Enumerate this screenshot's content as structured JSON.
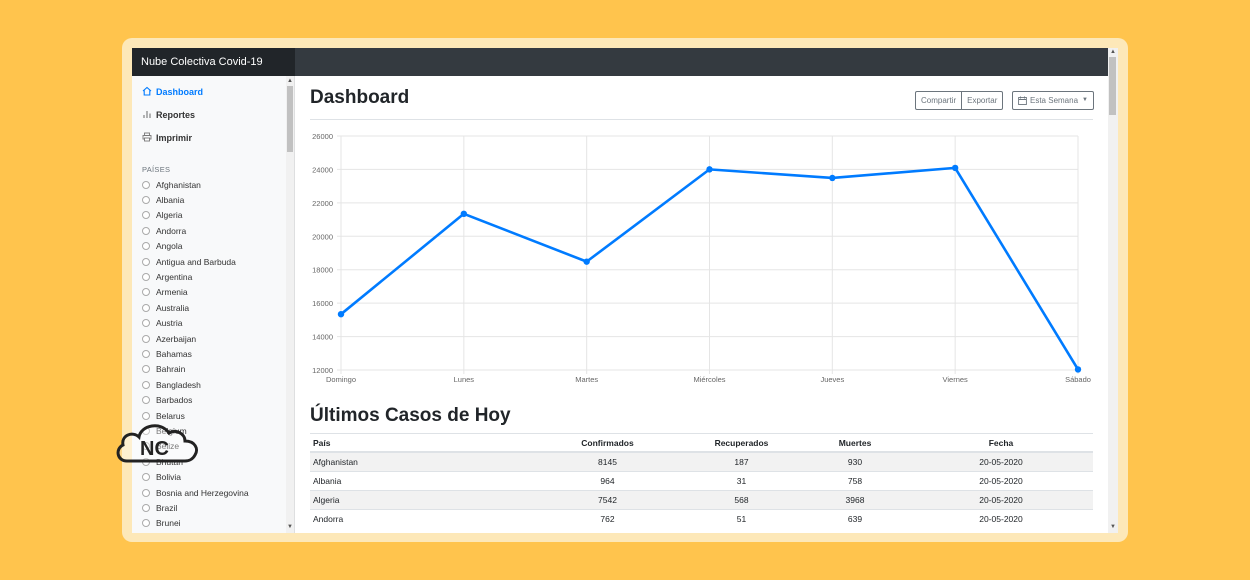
{
  "app": {
    "title": "Nube Colectiva Covid-19"
  },
  "sidebar": {
    "nav": [
      {
        "label": "Dashboard",
        "icon": "home-icon",
        "active": true
      },
      {
        "label": "Reportes",
        "icon": "bar-chart-icon",
        "active": false
      },
      {
        "label": "Imprimir",
        "icon": "printer-icon",
        "active": false
      }
    ],
    "countries_heading": "PAÍSES",
    "countries": [
      "Afghanistan",
      "Albania",
      "Algeria",
      "Andorra",
      "Angola",
      "Antigua and Barbuda",
      "Argentina",
      "Armenia",
      "Australia",
      "Austria",
      "Azerbaijan",
      "Bahamas",
      "Bahrain",
      "Bangladesh",
      "Barbados",
      "Belarus",
      "Belgium",
      "Belize",
      "Bhutan",
      "Bolivia",
      "Bosnia and Herzegovina",
      "Brazil",
      "Brunei"
    ]
  },
  "main": {
    "title": "Dashboard",
    "share_label": "Compartir",
    "export_label": "Exportar",
    "week_label": "Esta Semana",
    "table_title": "Últimos Casos de Hoy"
  },
  "chart_data": {
    "type": "line",
    "categories": [
      "Domingo",
      "Lunes",
      "Martes",
      "Miércoles",
      "Jueves",
      "Viernes",
      "Sábado"
    ],
    "values": [
      15339,
      21345,
      18483,
      24003,
      23489,
      24092,
      12034
    ],
    "ylim": [
      12000,
      26000
    ],
    "yticks": [
      12000,
      14000,
      16000,
      18000,
      20000,
      22000,
      24000,
      26000
    ],
    "grid": true,
    "color": "#007bff"
  },
  "table": {
    "headers": [
      "País",
      "Confirmados",
      "Recuperados",
      "Muertes",
      "Fecha"
    ],
    "rows": [
      [
        "Afghanistan",
        "8145",
        "187",
        "930",
        "20-05-2020"
      ],
      [
        "Albania",
        "964",
        "31",
        "758",
        "20-05-2020"
      ],
      [
        "Algeria",
        "7542",
        "568",
        "3968",
        "20-05-2020"
      ],
      [
        "Andorra",
        "762",
        "51",
        "639",
        "20-05-2020"
      ]
    ]
  },
  "logo": {
    "text": "NC"
  }
}
